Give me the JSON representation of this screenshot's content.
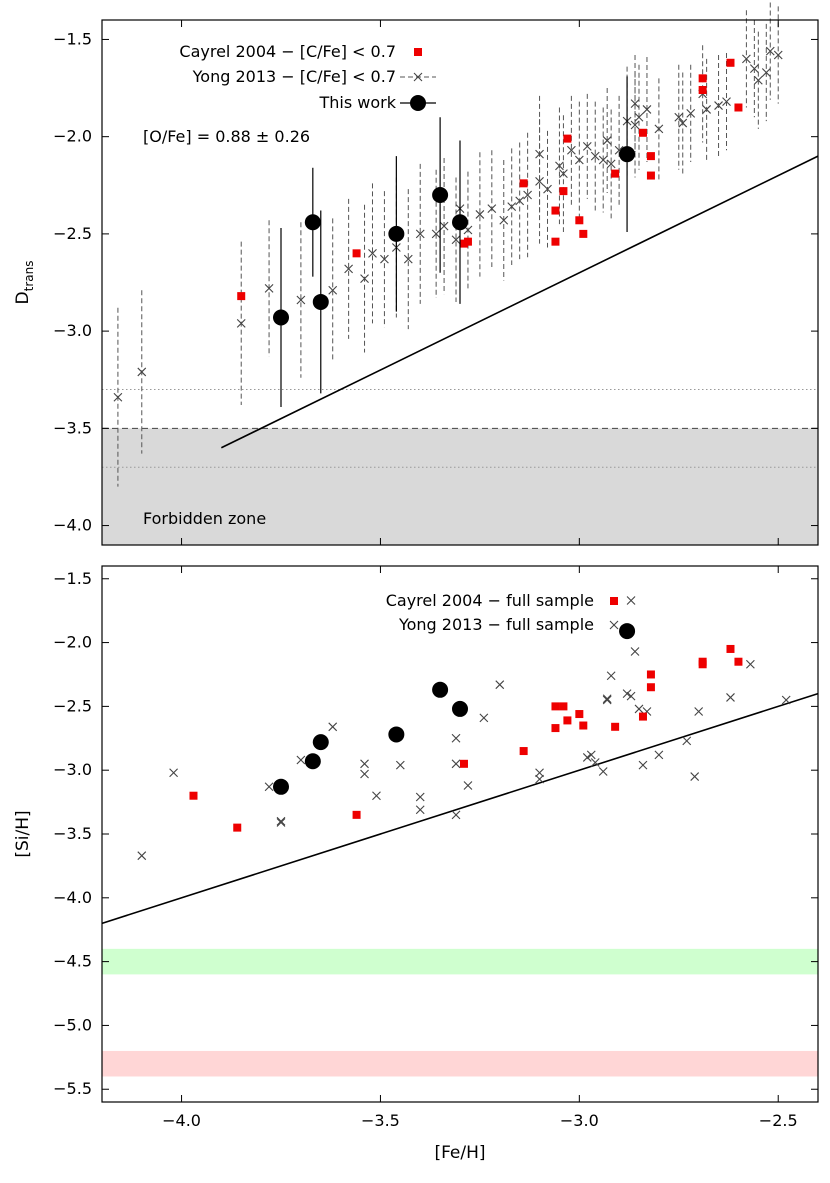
{
  "chart_data": [
    {
      "type": "scatter",
      "panel": "top",
      "ylabel_main": "D",
      "ylabel_sub": "trans",
      "xlim": [
        -4.2,
        -2.4
      ],
      "ylim": [
        -4.1,
        -1.4
      ],
      "yticks": [
        -4.0,
        -3.5,
        -3.0,
        -2.5,
        -2.0,
        -1.5
      ],
      "ytick_labels": [
        "−4.0",
        "−3.5",
        "−3.0",
        "−2.5",
        "−2.0",
        "−1.5"
      ],
      "xticks": [
        -4.0,
        -3.5,
        -3.0,
        -2.5
      ],
      "grid": false,
      "legend_position": "top-left",
      "annotation": "[O/Fe] = 0.88 ± 0.26",
      "zone_label": "Forbidden zone",
      "forbidden_zone": [
        -4.1,
        -3.5
      ],
      "reference_lines": {
        "dashed_y": -3.5,
        "dotted_y": [
          -3.3,
          -3.7
        ],
        "solid_line": [
          [
            -3.9,
            -3.6
          ],
          [
            -2.4,
            -2.1
          ]
        ]
      },
      "colors": {
        "cayrel": "#ee0000",
        "yong": "#444444",
        "this_work": "#000000",
        "forbidden": "#d9d9d9"
      },
      "series": [
        {
          "name": "Cayrel 2004 − [C/Fe] < 0.7",
          "marker": "square",
          "points": [
            [
              -3.85,
              -2.82
            ],
            [
              -3.56,
              -2.6
            ],
            [
              -3.29,
              -2.55
            ],
            [
              -3.28,
              -2.54
            ],
            [
              -3.14,
              -2.24
            ],
            [
              -3.06,
              -2.38
            ],
            [
              -3.06,
              -2.54
            ],
            [
              -3.04,
              -2.28
            ],
            [
              -3.03,
              -2.01
            ],
            [
              -3.0,
              -2.43
            ],
            [
              -2.99,
              -2.5
            ],
            [
              -2.91,
              -2.19
            ],
            [
              -2.84,
              -1.98
            ],
            [
              -2.82,
              -2.1
            ],
            [
              -2.82,
              -2.2
            ],
            [
              -2.69,
              -1.7
            ],
            [
              -2.69,
              -1.76
            ],
            [
              -2.62,
              -1.62
            ],
            [
              -2.6,
              -1.85
            ]
          ]
        },
        {
          "name": "Yong 2013 − [C/Fe] < 0.7",
          "marker": "cross",
          "points": [
            [
              -4.16,
              -3.34,
              0.46
            ],
            [
              -4.1,
              -3.21,
              0.42
            ],
            [
              -3.85,
              -2.96,
              0.42
            ],
            [
              -3.78,
              -2.78,
              0.35
            ],
            [
              -3.7,
              -2.84,
              0.4
            ],
            [
              -3.62,
              -2.79,
              0.37
            ],
            [
              -3.58,
              -2.68,
              0.36
            ],
            [
              -3.54,
              -2.73,
              0.38
            ],
            [
              -3.52,
              -2.6,
              0.36
            ],
            [
              -3.49,
              -2.63,
              0.35
            ],
            [
              -3.46,
              -2.57,
              0.36
            ],
            [
              -3.43,
              -2.63,
              0.36
            ],
            [
              -3.4,
              -2.5,
              0.36
            ],
            [
              -3.36,
              -2.5,
              0.33
            ],
            [
              -3.34,
              -2.46,
              0.35
            ],
            [
              -3.31,
              -2.53,
              0.32
            ],
            [
              -3.3,
              -2.37,
              0.32
            ],
            [
              -3.28,
              -2.48,
              0.3
            ],
            [
              -3.25,
              -2.4,
              0.32
            ],
            [
              -3.22,
              -2.37,
              0.3
            ],
            [
              -3.19,
              -2.43,
              0.31
            ],
            [
              -3.17,
              -2.36,
              0.3
            ],
            [
              -3.15,
              -2.33,
              0.3
            ],
            [
              -3.13,
              -2.3,
              0.32
            ],
            [
              -3.1,
              -2.23,
              0.32
            ],
            [
              -3.08,
              -2.27,
              0.3
            ],
            [
              -3.1,
              -2.09,
              0.3
            ],
            [
              -3.05,
              -2.15,
              0.3
            ],
            [
              -3.04,
              -2.19,
              0.3
            ],
            [
              -3.02,
              -2.07,
              0.28
            ],
            [
              -3.0,
              -2.12,
              0.3
            ],
            [
              -2.98,
              -2.05,
              0.27
            ],
            [
              -2.96,
              -2.1,
              0.28
            ],
            [
              -2.94,
              -2.12,
              0.27
            ],
            [
              -2.93,
              -2.02,
              0.27
            ],
            [
              -2.92,
              -2.14,
              0.28
            ],
            [
              -2.9,
              -2.07,
              0.28
            ],
            [
              -2.88,
              -1.92,
              0.28
            ],
            [
              -2.86,
              -1.94,
              0.27
            ],
            [
              -2.85,
              -1.9,
              0.27
            ],
            [
              -2.83,
              -1.86,
              0.27
            ],
            [
              -2.8,
              -1.96,
              0.26
            ],
            [
              -2.75,
              -1.9,
              0.27
            ],
            [
              -2.74,
              -1.93,
              0.26
            ],
            [
              -2.72,
              -1.88,
              0.25
            ],
            [
              -2.69,
              -1.78,
              0.25
            ],
            [
              -2.68,
              -1.86,
              0.26
            ],
            [
              -2.65,
              -1.84,
              0.26
            ],
            [
              -2.63,
              -1.82,
              0.25
            ],
            [
              -2.58,
              -1.6,
              0.25
            ],
            [
              -2.56,
              -1.65,
              0.25
            ],
            [
              -2.55,
              -1.71,
              0.25
            ],
            [
              -2.53,
              -1.67,
              0.25
            ],
            [
              -2.52,
              -1.56,
              0.25
            ],
            [
              -2.5,
              -1.58,
              0.25
            ],
            [
              -2.86,
              -1.83,
              0.25
            ]
          ]
        },
        {
          "name": "This work",
          "marker": "circle",
          "points": [
            [
              -3.75,
              -2.93,
              0.46
            ],
            [
              -3.67,
              -2.44,
              0.28
            ],
            [
              -3.65,
              -2.85,
              0.47
            ],
            [
              -3.46,
              -2.5,
              0.4
            ],
            [
              -3.35,
              -2.3,
              0.4
            ],
            [
              -3.3,
              -2.44,
              0.42
            ],
            [
              -2.88,
              -2.09,
              0.4
            ]
          ]
        }
      ]
    },
    {
      "type": "scatter",
      "panel": "bottom",
      "xlabel": "[Fe/H]",
      "ylabel": "[Si/H]",
      "xlim": [
        -4.2,
        -2.4
      ],
      "ylim": [
        -5.6,
        -1.4
      ],
      "xticks": [
        -4.0,
        -3.5,
        -3.0,
        -2.5
      ],
      "xtick_labels": [
        "−4.0",
        "−3.5",
        "−3.0",
        "−2.5"
      ],
      "yticks": [
        -5.5,
        -5.0,
        -4.5,
        -4.0,
        -3.5,
        -3.0,
        -2.5,
        -2.0,
        -1.5
      ],
      "ytick_labels": [
        "−5.5",
        "−5.0",
        "−4.5",
        "−4.0",
        "−3.5",
        "−3.0",
        "−2.5",
        "−2.0",
        "−1.5"
      ],
      "grid": false,
      "legend_position": "top-left",
      "bands": [
        {
          "y_range": [
            -4.6,
            -4.4
          ],
          "color": "#cfffcf"
        },
        {
          "y_range": [
            -5.4,
            -5.2
          ],
          "color": "#ffd6d6"
        }
      ],
      "solid_line": [
        [
          -4.2,
          -4.2
        ],
        [
          -2.4,
          -2.4
        ]
      ],
      "colors": {
        "cayrel": "#ee0000",
        "yong": "#444444",
        "this_work": "#000000"
      },
      "series": [
        {
          "name": "Cayrel 2004 − full sample",
          "marker": "square",
          "points": [
            [
              -3.97,
              -3.2
            ],
            [
              -3.86,
              -3.45
            ],
            [
              -3.56,
              -3.35
            ],
            [
              -3.29,
              -2.95
            ],
            [
              -3.14,
              -2.85
            ],
            [
              -3.06,
              -2.5
            ],
            [
              -3.06,
              -2.67
            ],
            [
              -3.04,
              -2.5
            ],
            [
              -3.03,
              -2.61
            ],
            [
              -3.0,
              -2.56
            ],
            [
              -2.99,
              -2.65
            ],
            [
              -2.91,
              -2.66
            ],
            [
              -2.84,
              -2.58
            ],
            [
              -2.82,
              -2.25
            ],
            [
              -2.82,
              -2.35
            ],
            [
              -2.69,
              -2.15
            ],
            [
              -2.69,
              -2.17
            ],
            [
              -2.62,
              -2.05
            ],
            [
              -2.6,
              -2.15
            ]
          ]
        },
        {
          "name": "Yong 2013 − full sample",
          "marker": "cross",
          "points": [
            [
              -4.1,
              -3.67
            ],
            [
              -4.02,
              -3.02
            ],
            [
              -3.78,
              -3.13
            ],
            [
              -3.75,
              -3.4
            ],
            [
              -3.75,
              -3.41
            ],
            [
              -3.7,
              -2.92
            ],
            [
              -3.62,
              -2.66
            ],
            [
              -3.54,
              -2.95
            ],
            [
              -3.54,
              -3.03
            ],
            [
              -3.51,
              -3.2
            ],
            [
              -3.45,
              -2.96
            ],
            [
              -3.4,
              -3.21
            ],
            [
              -3.4,
              -3.31
            ],
            [
              -3.31,
              -3.35
            ],
            [
              -3.31,
              -2.75
            ],
            [
              -3.31,
              -2.95
            ],
            [
              -3.28,
              -3.12
            ],
            [
              -3.24,
              -2.59
            ],
            [
              -3.2,
              -2.33
            ],
            [
              -3.1,
              -3.02
            ],
            [
              -3.1,
              -3.07
            ],
            [
              -2.98,
              -2.9
            ],
            [
              -2.97,
              -2.88
            ],
            [
              -2.96,
              -2.94
            ],
            [
              -2.94,
              -3.01
            ],
            [
              -2.93,
              -2.44
            ],
            [
              -2.92,
              -2.26
            ],
            [
              -2.88,
              -2.4
            ],
            [
              -2.87,
              -2.42
            ],
            [
              -2.87,
              -1.67
            ],
            [
              -2.86,
              -2.07
            ],
            [
              -2.85,
              -2.52
            ],
            [
              -2.84,
              -2.96
            ],
            [
              -2.83,
              -2.54
            ],
            [
              -2.8,
              -2.88
            ],
            [
              -2.73,
              -2.77
            ],
            [
              -2.71,
              -3.05
            ],
            [
              -2.7,
              -2.54
            ],
            [
              -2.62,
              -2.43
            ],
            [
              -2.57,
              -2.17
            ],
            [
              -2.48,
              -2.45
            ],
            [
              -2.93,
              -2.45
            ]
          ]
        },
        {
          "name": "This work",
          "marker": "circle",
          "points": [
            [
              -3.75,
              -3.13
            ],
            [
              -3.67,
              -2.93
            ],
            [
              -3.65,
              -2.78
            ],
            [
              -3.46,
              -2.72
            ],
            [
              -3.35,
              -2.37
            ],
            [
              -3.3,
              -2.52
            ],
            [
              -2.88,
              -1.91
            ]
          ]
        }
      ]
    }
  ]
}
